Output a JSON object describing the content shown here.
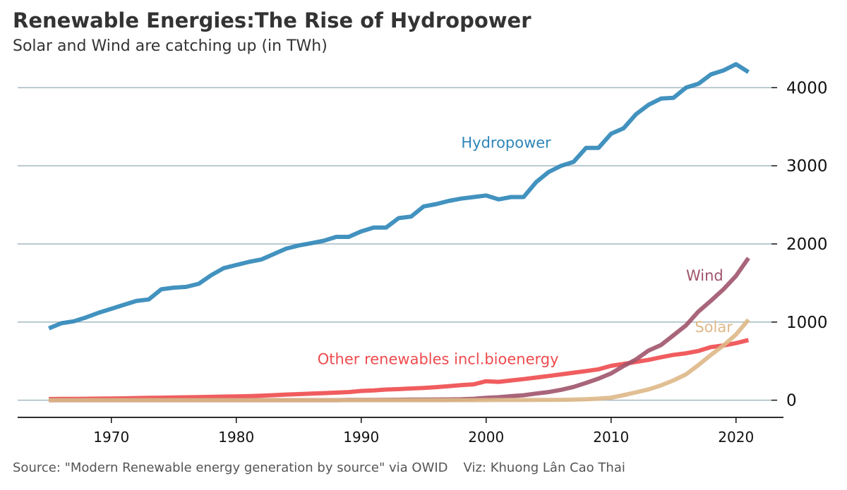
{
  "title": "Renewable Energies:The Rise of Hydropower",
  "subtitle": "Solar and Wind are catching up (in TWh)",
  "footer": {
    "source": "Source: \"Modern Renewable energy generation by source\" via OWID",
    "viz": "Viz: Khuong Lân Cao Thai"
  },
  "chart_data": {
    "type": "line",
    "x": [
      1965,
      1966,
      1967,
      1968,
      1969,
      1970,
      1971,
      1972,
      1973,
      1974,
      1975,
      1976,
      1977,
      1978,
      1979,
      1980,
      1981,
      1982,
      1983,
      1984,
      1985,
      1986,
      1987,
      1988,
      1989,
      1990,
      1991,
      1992,
      1993,
      1994,
      1995,
      1996,
      1997,
      1998,
      1999,
      2000,
      2001,
      2002,
      2003,
      2004,
      2005,
      2006,
      2007,
      2008,
      2009,
      2010,
      2011,
      2012,
      2013,
      2014,
      2015,
      2016,
      2017,
      2018,
      2019,
      2020,
      2021
    ],
    "xticks": [
      1970,
      1980,
      1990,
      2000,
      2010,
      2020
    ],
    "xlim": [
      1962.5,
      2023.8
    ],
    "ylim": [
      -220,
      4400
    ],
    "yticks": [
      0,
      1000,
      2000,
      3000,
      4000
    ],
    "grid": "horizontal",
    "y_axis_position": "right",
    "series": [
      {
        "name": "Hydropower",
        "color": "#2e86b8",
        "values": [
          920,
          985,
          1010,
          1060,
          1120,
          1170,
          1220,
          1270,
          1290,
          1420,
          1440,
          1450,
          1490,
          1600,
          1690,
          1730,
          1770,
          1800,
          1870,
          1940,
          1980,
          2010,
          2040,
          2090,
          2090,
          2160,
          2210,
          2210,
          2330,
          2350,
          2480,
          2510,
          2550,
          2580,
          2600,
          2620,
          2570,
          2600,
          2600,
          2790,
          2920,
          3000,
          3050,
          3230,
          3230,
          3410,
          3480,
          3660,
          3780,
          3860,
          3870,
          4000,
          4050,
          4170,
          4220,
          4300,
          4200
        ],
        "label_position": {
          "x": 1998,
          "y": 3230
        }
      },
      {
        "name": "Wind",
        "color": "#a0546b",
        "values": [
          0,
          0,
          0,
          0,
          0,
          0,
          0,
          0,
          0,
          0,
          0,
          0,
          0,
          0,
          0,
          0,
          0,
          0,
          0,
          0,
          0,
          0,
          0,
          0,
          3,
          4,
          4,
          5,
          6,
          7,
          8,
          9,
          10,
          12,
          18,
          31,
          38,
          52,
          63,
          85,
          104,
          133,
          170,
          221,
          276,
          342,
          437,
          522,
          635,
          706,
          831,
          958,
          1135,
          1273,
          1420,
          1590,
          1820
        ],
        "label_position": {
          "x": 2016,
          "y": 1530
        }
      },
      {
        "name": "Solar",
        "color": "#deb887",
        "values": [
          0,
          0,
          0,
          0,
          0,
          0,
          0,
          0,
          0,
          0,
          0,
          0,
          0,
          0,
          0,
          0,
          0,
          0,
          0,
          0,
          0,
          0,
          0,
          0,
          0,
          0,
          0,
          0,
          0,
          0,
          0,
          0,
          0,
          0,
          0,
          1,
          2,
          2,
          2,
          3,
          4,
          5,
          7,
          12,
          20,
          32,
          64,
          100,
          138,
          190,
          254,
          330,
          450,
          580,
          700,
          840,
          1030
        ],
        "label_position": {
          "x": 2016.7,
          "y": 870
        }
      },
      {
        "name": "Other renewables incl.bioenergy",
        "color": "#ee4b4e",
        "values": [
          15,
          16,
          17,
          18,
          20,
          22,
          24,
          27,
          30,
          32,
          35,
          37,
          40,
          43,
          46,
          48,
          52,
          57,
          64,
          72,
          78,
          84,
          90,
          97,
          104,
          118,
          126,
          136,
          142,
          150,
          157,
          167,
          180,
          193,
          203,
          243,
          235,
          253,
          270,
          290,
          310,
          330,
          352,
          373,
          395,
          440,
          464,
          490,
          516,
          550,
          580,
          600,
          630,
          680,
          700,
          730,
          770
        ],
        "label_position": {
          "x": 1986.5,
          "y": 460
        }
      }
    ]
  }
}
